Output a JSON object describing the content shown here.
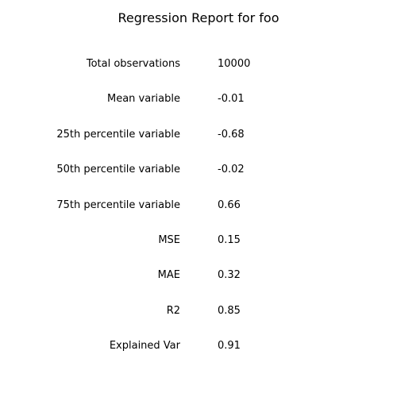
{
  "report": {
    "title": "Regression Report for foo",
    "metrics": [
      {
        "label": "Total observations",
        "value": "10000"
      },
      {
        "label": "Mean variable",
        "value": "-0.01"
      },
      {
        "label": "25th percentile variable",
        "value": "-0.68"
      },
      {
        "label": "50th percentile variable",
        "value": "-0.02"
      },
      {
        "label": "75th percentile variable",
        "value": "0.66"
      },
      {
        "label": "MSE",
        "value": "0.15"
      },
      {
        "label": "MAE",
        "value": "0.32"
      },
      {
        "label": "R2",
        "value": "0.85"
      },
      {
        "label": "Explained Var",
        "value": "0.91"
      }
    ]
  }
}
